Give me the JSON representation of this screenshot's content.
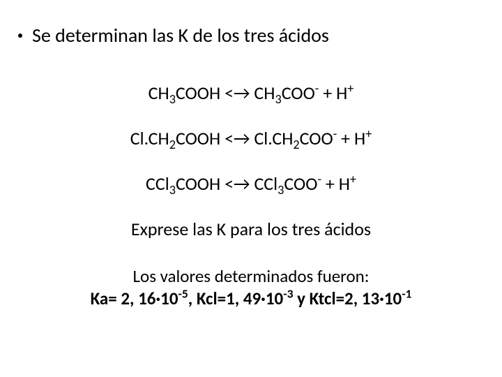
{
  "slide": {
    "bullet": "Se determinan las K de los tres ácidos",
    "equations": {
      "e1_lhs": "CH",
      "e1_s1": "3",
      "e1_mid1": "COOH <→ CH",
      "e1_s2": "3",
      "e1_mid2": "COO",
      "e1_sup1": "-",
      "e1_plus": " + H",
      "e1_sup2": "+",
      "e2_lhs": "Cl.CH",
      "e2_s1": "2",
      "e2_mid1": "COOH <→ Cl.CH",
      "e2_s2": "2",
      "e2_mid2": "COO",
      "e2_sup1": "-",
      "e2_plus": " + H",
      "e2_sup2": "+",
      "e3_lhs": "CCl",
      "e3_s1": "3",
      "e3_mid1": "COOH <→ CCl",
      "e3_s2": "3",
      "e3_mid2": "COO",
      "e3_sup1": "-",
      "e3_plus": " + H",
      "e3_sup2": "+"
    },
    "instruction": "Exprese las K para los tres ácidos",
    "values_intro": "Los valores determinados fueron:",
    "values": {
      "ka_pre": "Ka= 2, 16·10",
      "ka_exp": "-5",
      "kcl_pre": ", Kcl=1, 49·10",
      "kcl_exp": "-3",
      "ktcl_pre": " y Ktcl=2, 13·10",
      "ktcl_exp": "-1"
    }
  },
  "style": {
    "background_color": "#ffffff",
    "text_color": "#000000",
    "font_family": "Calibri",
    "bullet_fontsize_pt": 21,
    "equation_fontsize_pt": 20,
    "values_fontsize_pt": 19,
    "values_fontweight": 700
  }
}
